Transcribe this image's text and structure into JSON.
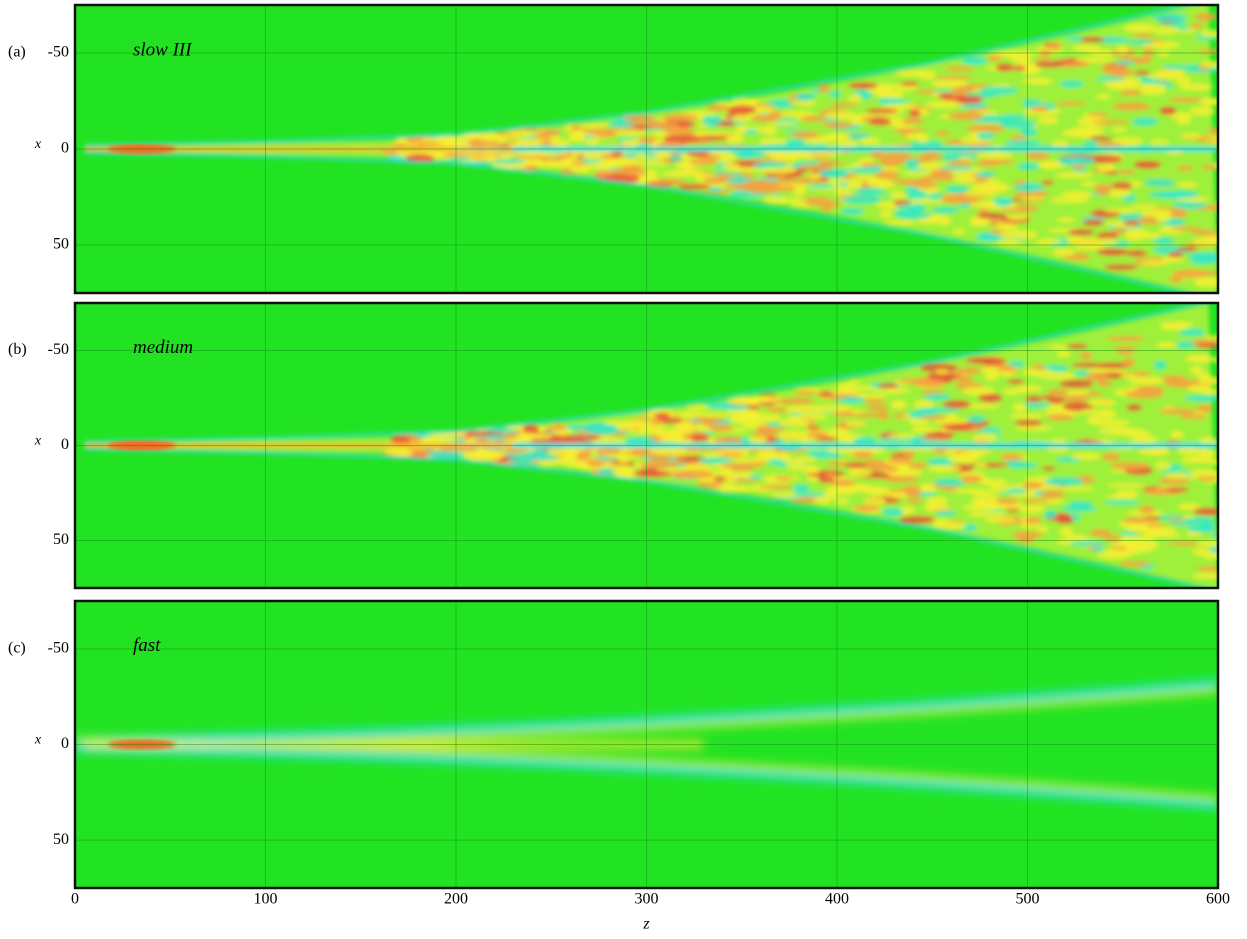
{
  "chart_data": [
    {
      "type": "heatmap",
      "label": "(a)",
      "annotation": "slow III",
      "ylabel": "x",
      "xlim": [
        0,
        600
      ],
      "xticks": [
        0,
        100,
        200,
        300,
        400,
        500,
        600
      ],
      "ylim": [
        -75,
        75
      ],
      "yticks": [
        -50,
        0,
        50
      ],
      "grid": true
    },
    {
      "type": "heatmap",
      "label": "(b)",
      "annotation": "medium",
      "ylabel": "x",
      "xlim": [
        0,
        600
      ],
      "xticks": [
        0,
        100,
        200,
        300,
        400,
        500,
        600
      ],
      "ylim": [
        -75,
        75
      ],
      "yticks": [
        -50,
        0,
        50
      ],
      "grid": true
    },
    {
      "type": "heatmap",
      "label": "(c)",
      "annotation": "fast",
      "ylabel": "x",
      "xlabel": "z",
      "xlim": [
        0,
        600
      ],
      "xticks": [
        0,
        100,
        200,
        300,
        400,
        500,
        600
      ],
      "ylim": [
        -75,
        75
      ],
      "yticks": [
        -50,
        0,
        50
      ],
      "grid": true
    }
  ]
}
